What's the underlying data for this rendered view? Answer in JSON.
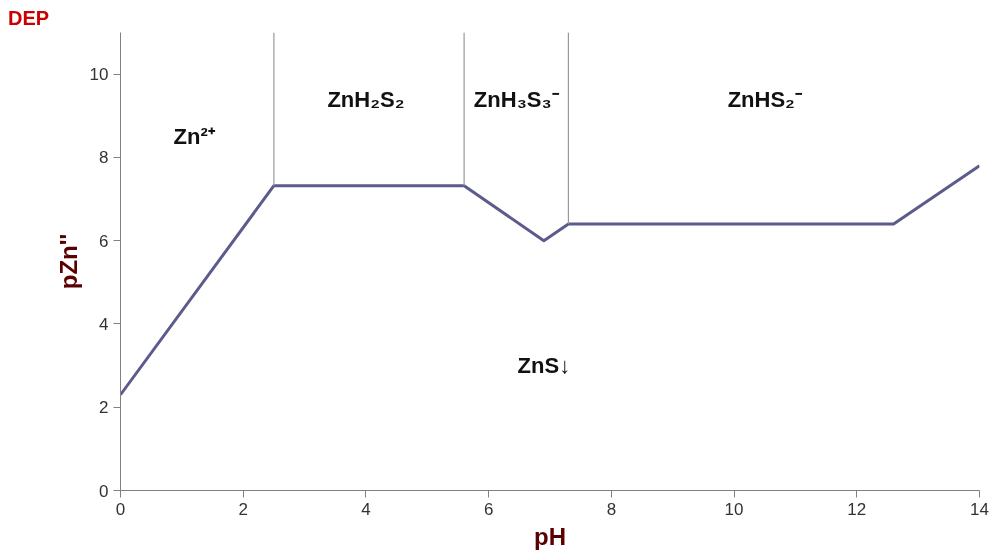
{
  "chart_data": {
    "type": "line",
    "xlabel": "pH",
    "ylabel": "pZn''",
    "xlim": [
      0,
      14
    ],
    "ylim": [
      0,
      11
    ],
    "xticks": [
      0,
      2,
      4,
      6,
      8,
      10,
      12,
      14
    ],
    "yticks": [
      0,
      2,
      4,
      6,
      8,
      10
    ],
    "grid": false,
    "marker": "none",
    "line_style": "solid",
    "series": [
      {
        "color": "#5b5b8c",
        "x": [
          0,
          2.5,
          5.6,
          6.9,
          7.3,
          12.6,
          14
        ],
        "values": [
          2.3,
          7.32,
          7.32,
          6.0,
          6.4,
          6.4,
          7.8
        ]
      },
      {
        "color": "#999999",
        "x": [
          2.5,
          2.5
        ],
        "values": [
          7.32,
          11
        ]
      },
      {
        "color": "#999999",
        "x": [
          5.6,
          5.6
        ],
        "values": [
          7.32,
          11
        ]
      },
      {
        "color": "#999999",
        "x": [
          7.3,
          7.3
        ],
        "values": [
          6.4,
          11
        ]
      }
    ],
    "annotations": [
      "DEP",
      "Zn²⁺",
      "ZnH₂S₂",
      "ZnH₃S₃⁻",
      "ZnHS₂⁻",
      "ZnS↓"
    ]
  }
}
